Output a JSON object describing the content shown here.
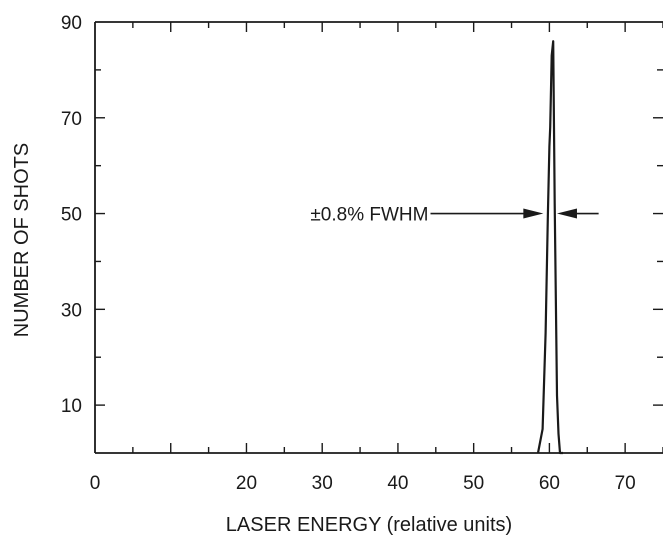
{
  "chart_data": {
    "type": "line",
    "title": "",
    "xlabel": "LASER ENERGY (relative units)",
    "ylabel": "NUMBER OF SHOTS",
    "xlim": [
      0,
      75
    ],
    "ylim": [
      0,
      90
    ],
    "x_ticks": [
      0,
      20,
      30,
      40,
      50,
      60,
      70
    ],
    "x_tick_labels": [
      "0",
      "20",
      "30",
      "40",
      "50",
      "60",
      "70"
    ],
    "y_ticks": [
      10,
      30,
      50,
      70,
      90
    ],
    "y_tick_labels": [
      "10",
      "30",
      "50",
      "70",
      "90"
    ],
    "grid": false,
    "legend": "none",
    "series": [
      {
        "x": [
          58.5,
          59.1,
          59.5,
          59.8,
          60.0,
          60.1,
          60.3,
          60.5,
          60.7,
          61.0,
          61.2,
          61.4,
          61.8
        ],
        "y": [
          0,
          5,
          25,
          50,
          64,
          68,
          83,
          86,
          52,
          12,
          4,
          0,
          0
        ]
      }
    ],
    "annotations": [
      {
        "text": "±0.8% FWHM",
        "y": 50,
        "arrow_left_x": [
          44.3,
          59.2
        ],
        "arrow_right_x": [
          66.5,
          61.0
        ]
      }
    ]
  },
  "colors": {
    "line": "#1a1a1a",
    "background": "#ffffff"
  }
}
